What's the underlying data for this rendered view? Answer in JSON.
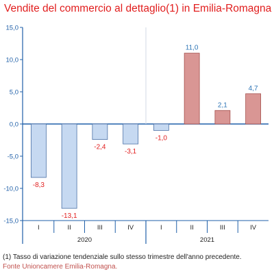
{
  "title": "Vendite del commercio al dettaglio(1) in Emilia-Romagna",
  "footnote": "(1) Tasso di variazione tendenziale sullo stesso trimestre dell'anno precedente.",
  "source": "Fonte Unioncamere Emilia-Romagna.",
  "colors": {
    "title": "#e11d1d",
    "negative_fill": "#c6d9f1",
    "negative_stroke": "#4a6fa5",
    "positive_fill": "#d99694",
    "positive_stroke": "#a5504d",
    "negative_label": "#e11d1d",
    "positive_label": "#2e75b6",
    "axis": "#1f5fa8",
    "tick_label": "#1f5fa8"
  },
  "chart_data": {
    "type": "bar",
    "title": "Vendite del commercio al dettaglio(1) in Emilia-Romagna",
    "categories": [
      "I",
      "II",
      "III",
      "IV",
      "I",
      "II",
      "III",
      "IV"
    ],
    "groups": [
      {
        "label": "2020",
        "categories": [
          "I",
          "II",
          "III",
          "IV"
        ]
      },
      {
        "label": "2021",
        "categories": [
          "I",
          "II",
          "III",
          "IV"
        ]
      }
    ],
    "values": [
      -8.3,
      -13.1,
      -2.4,
      -3.1,
      -1.0,
      11.0,
      2.1,
      4.7
    ],
    "value_labels": [
      "-8,3",
      "-13,1",
      "-2,4",
      "-3,1",
      "-1,0",
      "11,0",
      "2,1",
      "4,7"
    ],
    "ylim": [
      -15,
      15
    ],
    "yticks": [
      15,
      10,
      5,
      0,
      -5,
      -10,
      -15
    ],
    "ytick_labels": [
      "15,0",
      "10,0",
      "5,0",
      "0,0",
      "-5,0",
      "-10,0",
      "-15,0"
    ],
    "xlabel": "",
    "ylabel": "",
    "grid": false,
    "legend": "none"
  }
}
